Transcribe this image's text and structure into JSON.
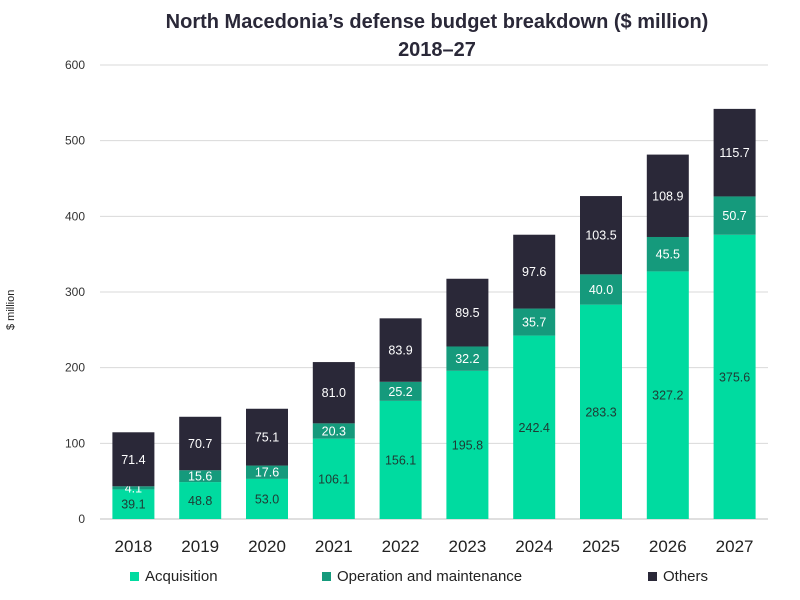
{
  "chart_data": {
    "type": "bar",
    "stacked": true,
    "title_line1": "North Macedonia’s defense budget breakdown ($ million)",
    "title_line2": "2018–27",
    "xlabel": "",
    "ylabel": "$ million",
    "ylim": [
      0,
      600
    ],
    "yticks": [
      "0",
      "100",
      "200",
      "300",
      "400",
      "500",
      "600"
    ],
    "categories": [
      "2018",
      "2019",
      "2020",
      "2021",
      "2022",
      "2023",
      "2024",
      "2025",
      "2026",
      "2027"
    ],
    "series": [
      {
        "name": "Acquisition",
        "color": "#00dba0",
        "label_color": "#1f3a34",
        "values": [
          39.1,
          48.8,
          53.0,
          106.1,
          156.1,
          195.8,
          242.4,
          283.3,
          327.2,
          375.6
        ],
        "labels": [
          "39.1",
          "48.8",
          "53.0",
          "106.1",
          "156.1",
          "195.8",
          "242.4",
          "283.3",
          "327.2",
          "375.6"
        ]
      },
      {
        "name": "Operation and maintenance",
        "color": "#159a7c",
        "label_color": "#ffffff",
        "values": [
          4.1,
          15.6,
          17.6,
          20.3,
          25.2,
          32.2,
          35.7,
          40.0,
          45.5,
          50.7
        ],
        "labels": [
          "4.1",
          "15.6",
          "17.6",
          "20.3",
          "25.2",
          "32.2",
          "35.7",
          "40.0",
          "45.5",
          "50.7"
        ]
      },
      {
        "name": "Others",
        "color": "#2a2838",
        "label_color": "#ffffff",
        "values": [
          71.4,
          70.7,
          75.1,
          81.0,
          83.9,
          89.5,
          97.6,
          103.5,
          108.9,
          115.7
        ],
        "labels": [
          "71.4",
          "70.7",
          "75.1",
          "81.0",
          "83.9",
          "89.5",
          "97.6",
          "103.5",
          "108.9",
          "115.7"
        ]
      }
    ],
    "legend_position": "bottom",
    "grid": true
  }
}
